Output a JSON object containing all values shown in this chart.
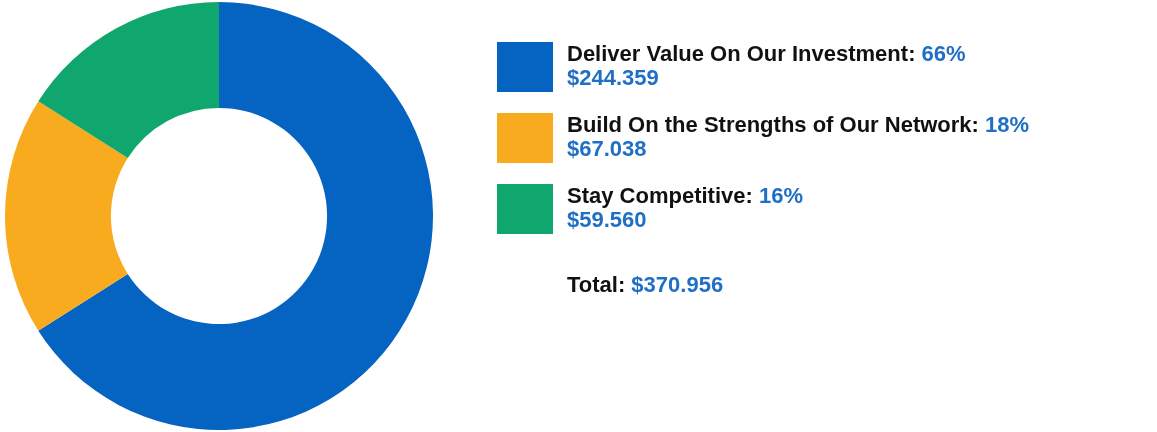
{
  "chart_data": {
    "type": "donut",
    "categories": [
      "Deliver Value On Our Investment",
      "Build On the Strengths of Our Network",
      "Stay Competitive"
    ],
    "values": [
      66,
      18,
      16
    ],
    "value_labels": [
      ": 66%",
      ": 18%",
      ": 16%"
    ],
    "colors": [
      "#0563c1",
      "#f8ab1f",
      "#0fa76d"
    ],
    "legend": "right",
    "annotations": [
      {
        "text": "$244.359",
        "x": "Deliver Value On Our Investment"
      },
      {
        "text": "$67.038",
        "x": "Build On the Strengths of Our Network"
      },
      {
        "text": "$59.560",
        "x": "Stay Competitive"
      },
      "Total: $370.956"
    ]
  }
}
